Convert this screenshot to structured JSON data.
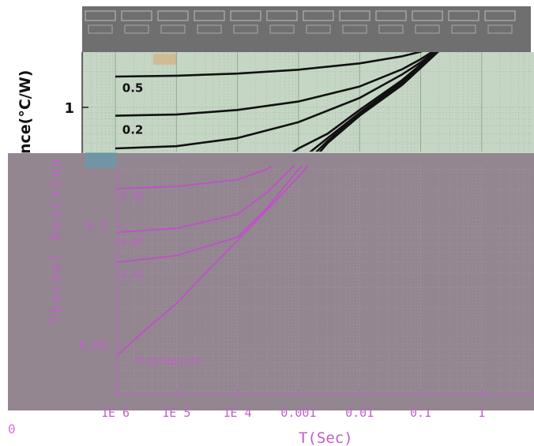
{
  "chart_data": {
    "type": "line",
    "title": "",
    "xlabel": "T(Sec)",
    "ylabel_top_fragment": "nce(°C/W)",
    "ylabel_bottom_fragment": "Thermal Resistan",
    "x_scale": "log",
    "y_scale": "log",
    "xlim": [
      5e-07,
      4
    ],
    "ylim": [
      0.004,
      3
    ],
    "x_ticks": [
      {
        "value": 1e-06,
        "label": "1E 6"
      },
      {
        "value": 1e-05,
        "label": "1E 5"
      },
      {
        "value": 0.0001,
        "label": "1E 4"
      },
      {
        "value": 0.001,
        "label": "0.001"
      },
      {
        "value": 0.01,
        "label": "0.01"
      },
      {
        "value": 0.1,
        "label": "0.1"
      },
      {
        "value": 1,
        "label": "1"
      }
    ],
    "y_ticks_top": [
      {
        "value": 1,
        "label": "1"
      }
    ],
    "y_ticks_bottom": [
      {
        "value": 0.1,
        "label": "0.1"
      },
      {
        "value": 0.01,
        "label": "0.01"
      }
    ],
    "corner_label": "0",
    "grid": true,
    "series": [
      {
        "name": "0.5",
        "x": [
          1e-06,
          1e-05,
          0.0001,
          0.001,
          0.01,
          0.05,
          0.1,
          0.2,
          0.3,
          0.5,
          1,
          3
        ],
        "y": [
          1.82,
          1.85,
          1.93,
          2.08,
          2.35,
          2.7,
          2.95,
          3.3,
          3.55,
          3.7,
          3.75,
          3.75
        ]
      },
      {
        "name": "0.2",
        "x": [
          1e-06,
          1e-05,
          0.0001,
          0.001,
          0.01,
          0.05,
          0.1,
          0.2,
          0.3,
          0.5,
          1,
          3
        ],
        "y": [
          0.85,
          0.87,
          0.95,
          1.12,
          1.5,
          2.1,
          2.55,
          3.2,
          3.55,
          3.7,
          3.75,
          3.75
        ]
      },
      {
        "name": "",
        "x": [
          1e-06,
          1e-05,
          0.0001,
          0.001,
          0.01,
          0.05,
          0.1,
          0.2,
          0.3,
          0.5,
          1,
          3
        ],
        "y": [
          0.45,
          0.47,
          0.55,
          0.75,
          1.2,
          1.9,
          2.4,
          3.15,
          3.5,
          3.7,
          3.75,
          3.75
        ]
      },
      {
        "name": "0.05",
        "x": [
          1e-06,
          1e-05,
          0.0001,
          0.0003,
          0.001,
          0.003,
          0.01,
          0.05,
          0.1,
          0.2,
          0.3,
          0.5,
          1,
          3
        ],
        "y": [
          0.205,
          0.215,
          0.245,
          0.3,
          0.45,
          0.6,
          0.95,
          1.7,
          2.3,
          3.1,
          3.5,
          3.7,
          3.75,
          3.75
        ]
      },
      {
        "name": "0.07",
        "x": [
          1e-06,
          1e-05,
          0.0001,
          0.0003,
          0.001,
          0.003,
          0.01,
          0.05,
          0.1,
          0.2,
          0.3,
          0.5,
          1,
          3
        ],
        "y": [
          0.088,
          0.095,
          0.125,
          0.19,
          0.35,
          0.55,
          0.9,
          1.65,
          2.25,
          3.1,
          3.5,
          3.7,
          3.75,
          3.75
        ]
      },
      {
        "name": "0.01",
        "x": [
          1e-06,
          1e-05,
          0.0001,
          0.0003,
          0.001,
          0.003,
          0.01,
          0.05,
          0.1,
          0.2,
          0.3,
          0.5,
          1,
          3
        ],
        "y": [
          0.049,
          0.056,
          0.08,
          0.14,
          0.3,
          0.52,
          0.88,
          1.6,
          2.2,
          3.05,
          3.5,
          3.7,
          3.75,
          3.75
        ]
      },
      {
        "name": "singlepulse",
        "x": [
          1e-06,
          3e-06,
          1e-05,
          3e-05,
          0.0001,
          0.0003,
          0.001,
          0.003,
          0.01,
          0.05,
          0.1,
          0.2,
          0.3,
          0.5,
          1,
          3
        ],
        "y": [
          0.0078,
          0.013,
          0.022,
          0.04,
          0.075,
          0.135,
          0.26,
          0.5,
          0.85,
          1.55,
          2.15,
          3.0,
          3.45,
          3.7,
          3.75,
          3.75
        ]
      }
    ],
    "series_labels": [
      {
        "text": "0.5",
        "x": 1.3e-06,
        "y": 1.35
      },
      {
        "text": "0.2",
        "x": 1.3e-06,
        "y": 0.6
      },
      {
        "text": "0.05",
        "x": 1.2e-06,
        "y": 0.165
      },
      {
        "text": "0.07",
        "x": 1.2e-06,
        "y": 0.068
      },
      {
        "text": "0.01",
        "x": 1.2e-06,
        "y": 0.036
      },
      {
        "text": "singlepulse",
        "x": 2e-06,
        "y": 0.0068
      }
    ],
    "colors": {
      "top_bg": "#c5d6c5",
      "top_curve": "#111111",
      "bottom_bg": "#938691",
      "bottom_curve": "#c24fc8",
      "bottom_text": "#c060c8",
      "header_strip": "#6f6f6f",
      "corner_text": "#e070e0"
    }
  }
}
